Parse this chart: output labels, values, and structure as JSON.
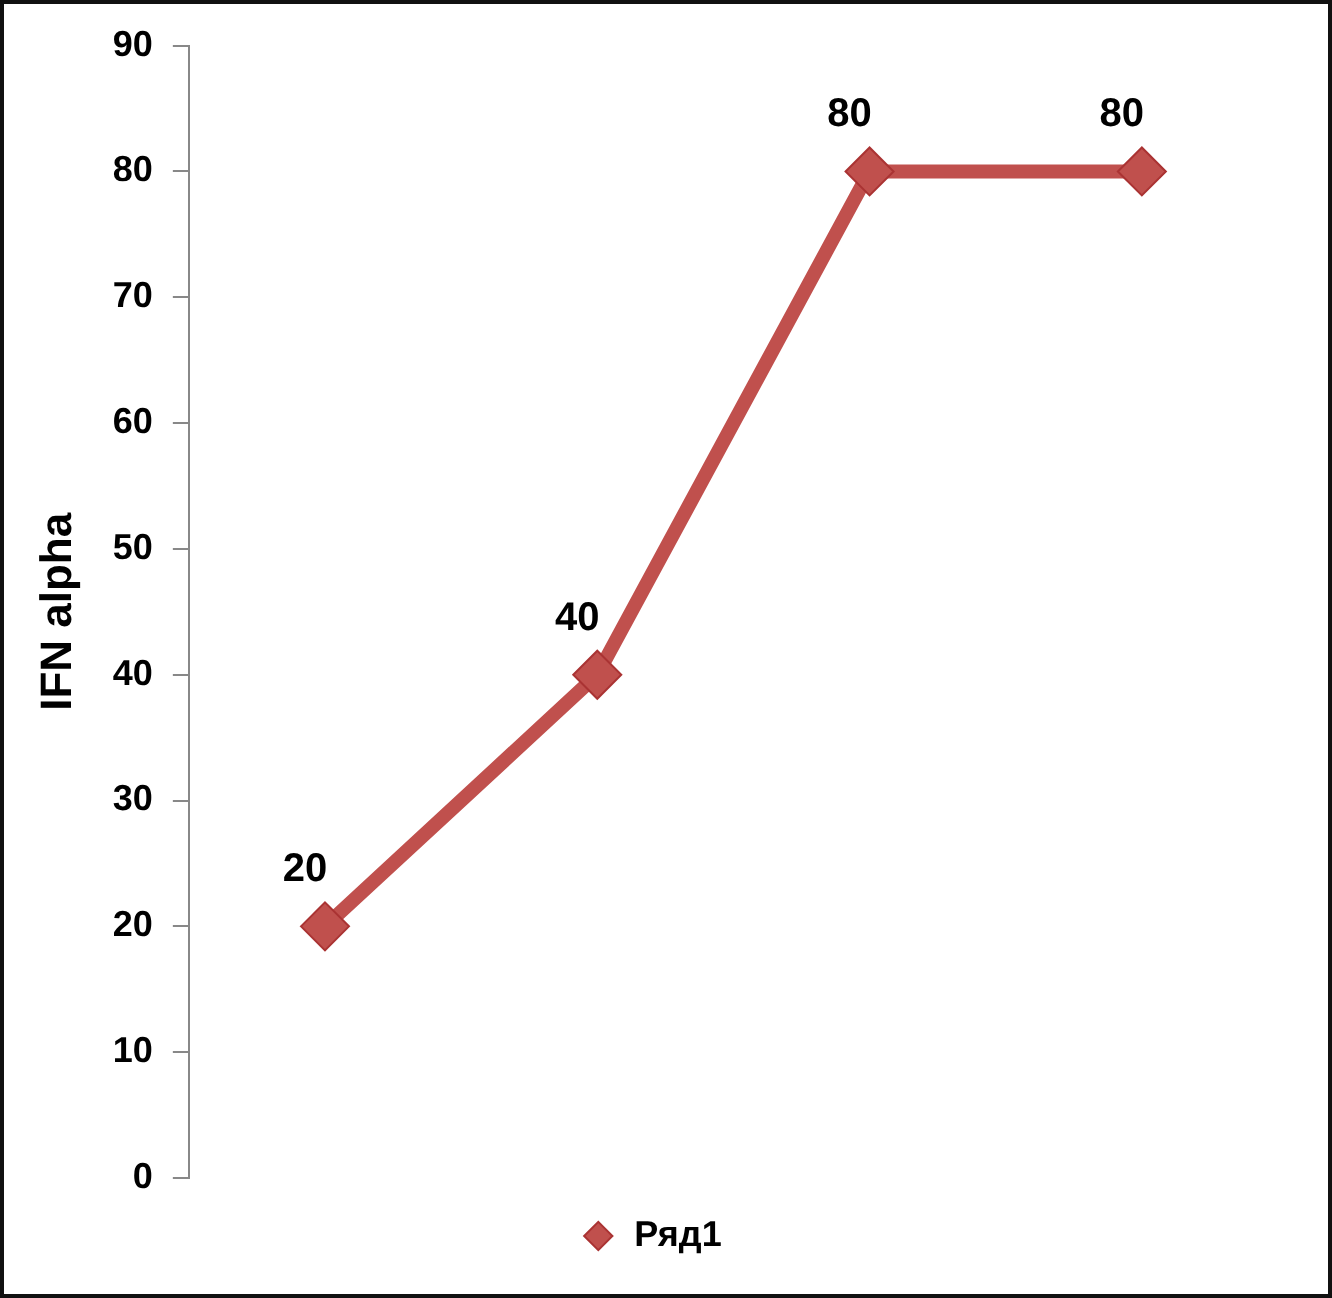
{
  "chart_data": {
    "type": "line",
    "ylabel": "IFN alpha",
    "categories": [
      null,
      null,
      null,
      null
    ],
    "series": [
      {
        "name": "Ряд1",
        "color": "#c0504d",
        "values": [
          20,
          40,
          80,
          80
        ]
      }
    ],
    "ylim": [
      0,
      90
    ],
    "yticks": [
      0,
      10,
      20,
      30,
      40,
      50,
      60,
      70,
      80,
      90
    ],
    "grid": false,
    "legend": "bottom",
    "marker": "diamond",
    "line_style": "solid",
    "data_labels": true,
    "tick_labels": "y"
  }
}
